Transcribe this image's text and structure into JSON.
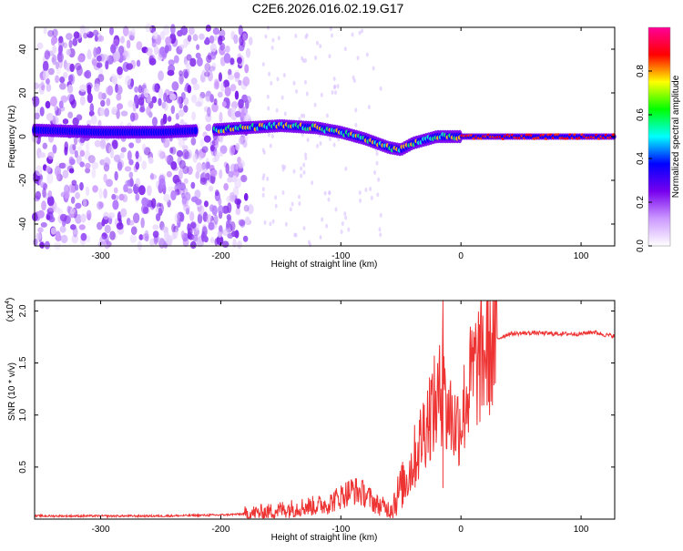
{
  "chart_data": [
    {
      "type": "heatmap",
      "title": "C2E6.2026.016.02.19.G17",
      "xlabel": "Height of straight line (km)",
      "ylabel": "Frequency (Hz)",
      "xlim": [
        -355,
        128
      ],
      "ylim": [
        -50,
        50
      ],
      "xticks": [
        -300,
        -200,
        -100,
        0,
        100
      ],
      "xtick_labels": [
        "-300",
        "-200",
        "-100",
        "0",
        "100"
      ],
      "yticks": [
        -40,
        -20,
        0,
        20,
        40
      ],
      "ytick_labels": [
        "-40",
        "-20",
        "0",
        "20",
        "40"
      ],
      "colorbar": {
        "label": "Normalized spectral amplitude",
        "range": [
          0,
          1
        ],
        "ticks": [
          0.0,
          0.2,
          0.4,
          0.6,
          0.8
        ],
        "tick_labels": [
          "0.0",
          "0.2",
          "0.4",
          "0.6",
          "0.8"
        ],
        "colors": [
          "#ffffff",
          "#cc99ff",
          "#7700ee",
          "#0000ff",
          "#00ffff",
          "#00ff00",
          "#ffff00",
          "#ff0000",
          "#ff0099"
        ]
      },
      "main_signal_centerline": {
        "x": [
          -355,
          -300,
          -250,
          -210,
          -180,
          -150,
          -120,
          -100,
          -80,
          -70,
          -60,
          -50,
          -40,
          -20,
          0,
          50,
          100,
          128
        ],
        "y": [
          3,
          2,
          2,
          3,
          4,
          5,
          4,
          2,
          -1,
          -3,
          -5,
          -6,
          -3,
          0,
          0,
          0,
          0,
          0
        ]
      },
      "scatter_noise_region_x": [
        -355,
        -175
      ]
    },
    {
      "type": "line",
      "xlabel": "Height of straight line (km)",
      "ylabel": "SNR (10 * v/v)",
      "yscale_label": "(x10",
      "yscale_exponent": "4",
      "xlim": [
        -355,
        128
      ],
      "ylim": [
        0,
        2.1
      ],
      "xticks": [
        -300,
        -200,
        -100,
        0,
        100
      ],
      "xtick_labels": [
        "-300",
        "-200",
        "-100",
        "0",
        "100"
      ],
      "yticks": [
        0.5,
        1.0,
        1.5,
        2.0
      ],
      "ytick_labels": [
        "0.5",
        "1.0",
        "1.5",
        "2.0"
      ],
      "series": [
        {
          "name": "SNR",
          "color": "#ee3333",
          "x": [
            -355,
            -300,
            -250,
            -200,
            -180,
            -160,
            -150,
            -130,
            -120,
            -110,
            -100,
            -90,
            -80,
            -70,
            -60,
            -55,
            -50,
            -45,
            -40,
            -35,
            -30,
            -25,
            -20,
            -16,
            -15,
            -13,
            -10,
            -5,
            0,
            5,
            10,
            20,
            30,
            40,
            60,
            80,
            100,
            110,
            120,
            128
          ],
          "y": [
            0.03,
            0.03,
            0.03,
            0.04,
            0.05,
            0.07,
            0.09,
            0.12,
            0.13,
            0.15,
            0.22,
            0.28,
            0.24,
            0.14,
            0.1,
            0.18,
            0.3,
            0.4,
            0.55,
            0.7,
            0.9,
            1.05,
            1.1,
            1.25,
            2.1,
            1.0,
            1.05,
            0.9,
            0.95,
            1.2,
            1.4,
            1.6,
            1.73,
            1.78,
            1.79,
            1.78,
            1.78,
            1.8,
            1.77,
            1.76
          ]
        }
      ]
    }
  ]
}
